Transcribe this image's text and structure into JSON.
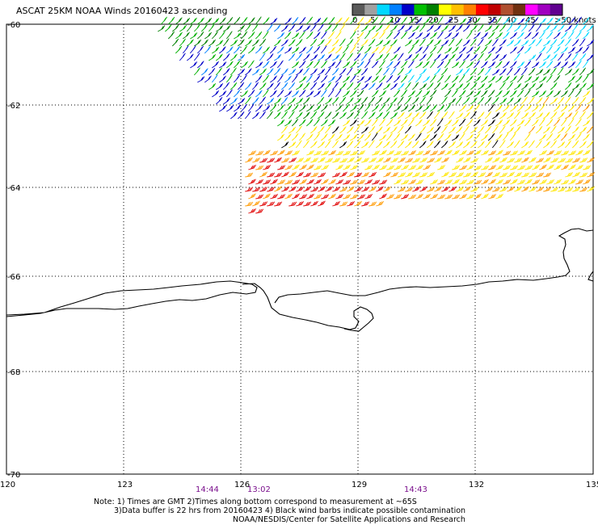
{
  "title": "ASCAT 25KM NOAA Winds 20160423 ascending",
  "legend": {
    "unit_label": ">50 knots",
    "ticks": [
      "0",
      "5",
      "10",
      "15",
      "20",
      "25",
      "30",
      "35",
      "40",
      "45"
    ],
    "colors": [
      "#5a5a5a",
      "#a0a0a0",
      "#00d8ff",
      "#0080ff",
      "#0000c8",
      "#00c000",
      "#008000",
      "#ffff00",
      "#ffc000",
      "#ff8000",
      "#ff0000",
      "#c00000",
      "#b05030",
      "#703010",
      "#ff00ff",
      "#a000c0",
      "#600090"
    ]
  },
  "lat_labels": [
    "-60",
    "-62",
    "-64",
    "-66",
    "-68",
    "-70"
  ],
  "lon_labels": [
    "120",
    "123",
    "126",
    "129",
    "132",
    "135"
  ],
  "time_labels": [
    "14:44",
    "13:02",
    "14:43"
  ],
  "notes": {
    "line1": "Note: 1) Times are GMT 2)Times along bottom correspond to measurement at ~65S",
    "line2": "3)Data buffer is 22 hrs from 20160423 4) Black wind barbs indicate possible contamination",
    "line3": "NOAA/NESDIS/Center for Satellite Applications and Research"
  },
  "wind_colors": {
    "cyan": "#00d8ff",
    "blue": "#0000c8",
    "mid_blue": "#0080ff",
    "green": "#00b000",
    "dark_green": "#008000",
    "yellow": "#ffe600",
    "orange": "#ff9a00",
    "red": "#e00000",
    "dark": "#000000"
  }
}
